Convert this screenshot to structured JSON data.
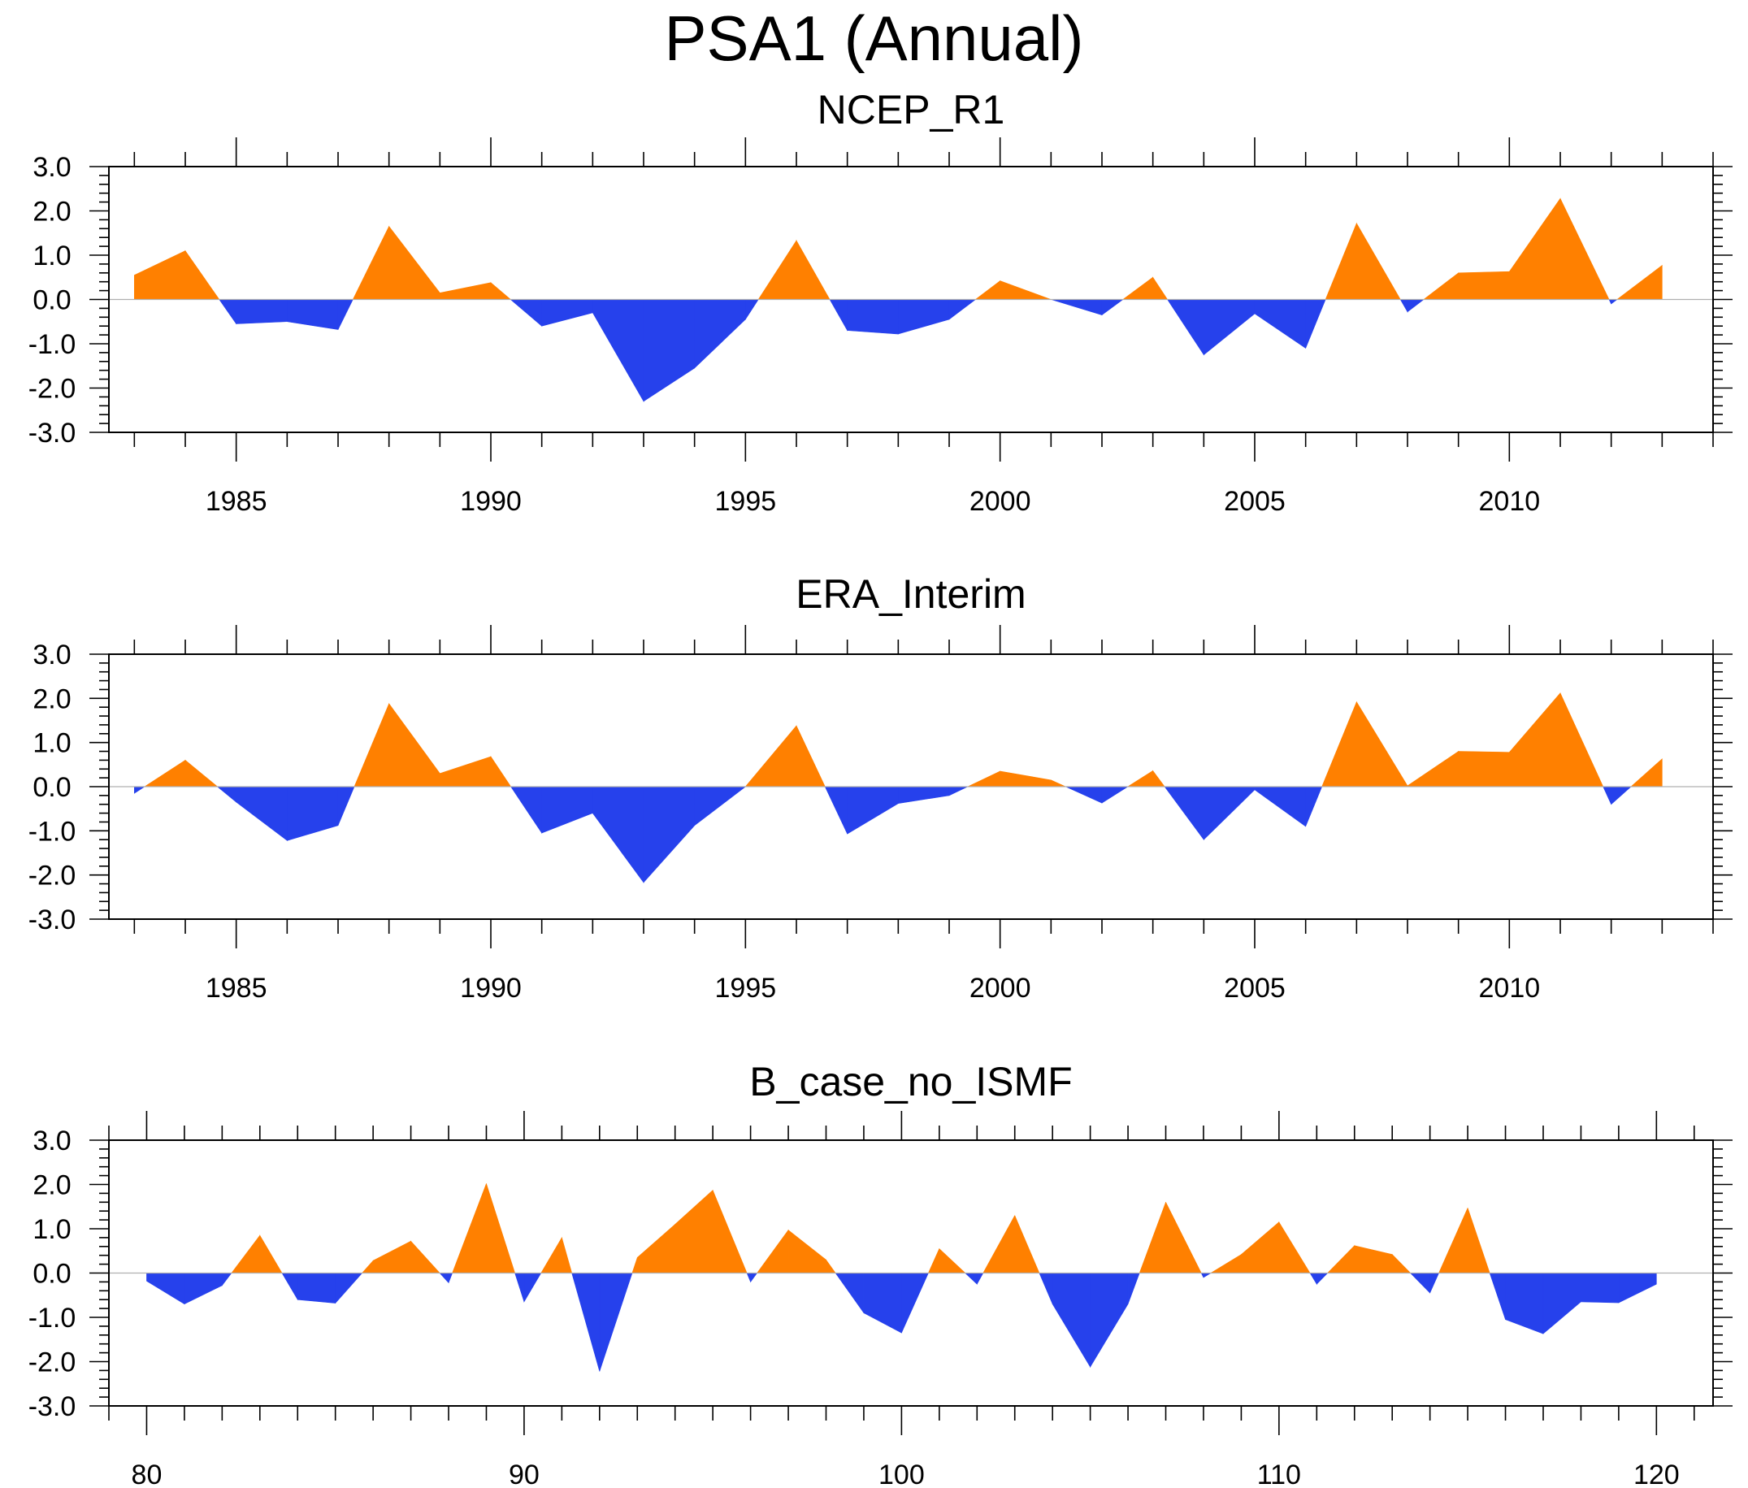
{
  "title": "PSA1 (Annual)",
  "colors": {
    "positive": "#ff8000",
    "negative": "#2641ec",
    "axis": "#000000",
    "zero_line": "#b0b0b0"
  },
  "chart_data": [
    {
      "type": "area",
      "title": "NCEP_R1",
      "xlabel": "",
      "ylabel": "",
      "xlim": [
        1982.5,
        2014.0
      ],
      "ylim": [
        -3.0,
        3.0
      ],
      "xticks": [
        1985,
        1990,
        1995,
        2000,
        2005,
        2010
      ],
      "xtick_labels": [
        "1985",
        "1990",
        "1995",
        "2000",
        "2005",
        "2010"
      ],
      "yticks": [
        -3,
        -2,
        -1,
        0,
        1,
        2,
        3
      ],
      "ytick_labels": [
        "-3.0",
        "-2.0",
        "-1.0",
        "0.0",
        "1.0",
        "2.0",
        "3.0"
      ],
      "x": [
        1983,
        1984,
        1985,
        1986,
        1987,
        1988,
        1989,
        1990,
        1991,
        1992,
        1993,
        1994,
        1995,
        1996,
        1997,
        1998,
        1999,
        2000,
        2001,
        2002,
        2003,
        2004,
        2005,
        2006,
        2007,
        2008,
        2009,
        2010,
        2011,
        2012,
        2013
      ],
      "values": [
        0.55,
        1.1,
        -0.55,
        -0.5,
        -0.68,
        1.65,
        0.15,
        0.38,
        -0.6,
        -0.3,
        -2.3,
        -1.55,
        -0.45,
        1.33,
        -0.7,
        -0.78,
        -0.45,
        0.42,
        0.0,
        -0.35,
        0.5,
        -1.25,
        -0.32,
        -1.1,
        1.72,
        -0.28,
        0.6,
        0.63,
        2.28,
        -0.1,
        0.77
      ]
    },
    {
      "type": "area",
      "title": "ERA_Interim",
      "xlabel": "",
      "ylabel": "",
      "xlim": [
        1982.5,
        2014.0
      ],
      "ylim": [
        -3.0,
        3.0
      ],
      "xticks": [
        1985,
        1990,
        1995,
        2000,
        2005,
        2010
      ],
      "xtick_labels": [
        "1985",
        "1990",
        "1995",
        "2000",
        "2005",
        "2010"
      ],
      "yticks": [
        -3,
        -2,
        -1,
        0,
        1,
        2,
        3
      ],
      "ytick_labels": [
        "-3.0",
        "-2.0",
        "-1.0",
        "0.0",
        "1.0",
        "2.0",
        "3.0"
      ],
      "x": [
        1983,
        1984,
        1985,
        1986,
        1987,
        1988,
        1989,
        1990,
        1991,
        1992,
        1993,
        1994,
        1995,
        1996,
        1997,
        1998,
        1999,
        2000,
        2001,
        2002,
        2003,
        2004,
        2005,
        2006,
        2007,
        2008,
        2009,
        2010,
        2011,
        2012,
        2013
      ],
      "values": [
        -0.15,
        0.6,
        -0.35,
        -1.22,
        -0.88,
        1.88,
        0.3,
        0.68,
        -1.05,
        -0.6,
        -2.17,
        -0.88,
        0.0,
        1.38,
        -1.07,
        -0.38,
        -0.2,
        0.35,
        0.15,
        -0.37,
        0.36,
        -1.2,
        -0.07,
        -0.9,
        1.92,
        0.02,
        0.8,
        0.78,
        2.12,
        -0.4,
        0.63
      ]
    },
    {
      "type": "area",
      "title": "B_case_no_ISMF",
      "xlabel": "",
      "ylabel": "",
      "xlim": [
        79.0,
        121.5
      ],
      "ylim": [
        -3.0,
        3.0
      ],
      "xticks": [
        80,
        90,
        100,
        110,
        120
      ],
      "xtick_labels": [
        "80",
        "90",
        "100",
        "110",
        "120"
      ],
      "yticks": [
        -3,
        -2,
        -1,
        0,
        1,
        2,
        3
      ],
      "ytick_labels": [
        "-3.0",
        "-2.0",
        "-1.0",
        "0.0",
        "1.0",
        "2.0",
        "3.0"
      ],
      "x": [
        80,
        81,
        82,
        83,
        84,
        85,
        86,
        87,
        88,
        89,
        90,
        91,
        92,
        93,
        94,
        95,
        96,
        97,
        98,
        99,
        100,
        101,
        102,
        103,
        104,
        105,
        106,
        107,
        108,
        109,
        110,
        111,
        112,
        113,
        114,
        115,
        116,
        117,
        118,
        119,
        120
      ],
      "values": [
        -0.18,
        -0.7,
        -0.28,
        0.85,
        -0.6,
        -0.68,
        0.28,
        0.72,
        -0.22,
        2.02,
        -0.65,
        0.8,
        -2.22,
        0.35,
        1.1,
        1.87,
        -0.2,
        0.97,
        0.3,
        -0.9,
        -1.35,
        0.55,
        -0.25,
        1.3,
        -0.7,
        -2.12,
        -0.7,
        1.6,
        -0.1,
        0.42,
        1.15,
        -0.25,
        0.62,
        0.42,
        -0.45,
        1.47,
        -1.05,
        -1.37,
        -0.65,
        -0.67,
        -0.25
      ]
    }
  ]
}
